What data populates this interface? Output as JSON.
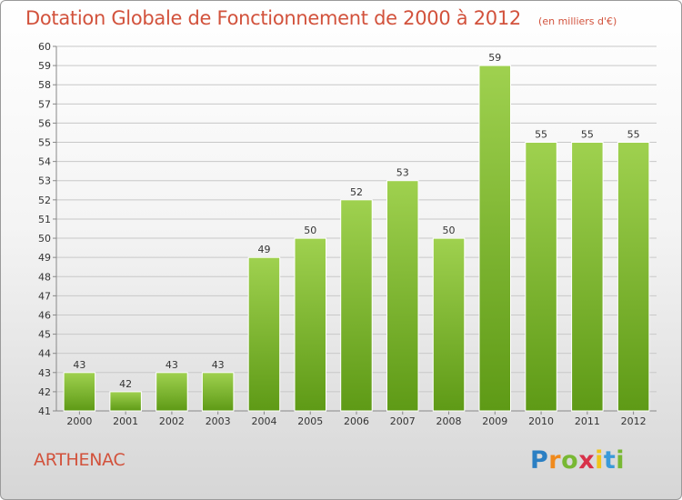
{
  "header": {
    "title": "Dotation Globale de Fonctionnement de 2000 à 2012",
    "unit": "(en milliers d'€)"
  },
  "footer": {
    "commune": "ARTHENAC",
    "logo_text": "Proxiti"
  },
  "colors": {
    "title": "#d2523c",
    "bar_top": "#9fd14f",
    "bar_bottom": "#5e9a16",
    "grid": "#c8c8c8"
  },
  "chart_data": {
    "type": "bar",
    "title": "Dotation Globale de Fonctionnement de 2000 à 2012",
    "subtitle": "(en milliers d'€)",
    "xlabel": "",
    "ylabel": "",
    "categories": [
      "2000",
      "2001",
      "2002",
      "2003",
      "2004",
      "2005",
      "2006",
      "2007",
      "2008",
      "2009",
      "2010",
      "2011",
      "2012"
    ],
    "values": [
      43,
      42,
      43,
      43,
      49,
      50,
      52,
      53,
      50,
      59,
      55,
      55,
      55
    ],
    "ylim": [
      41,
      60
    ],
    "ytick_step": 1,
    "grid": true,
    "legend": "none"
  }
}
